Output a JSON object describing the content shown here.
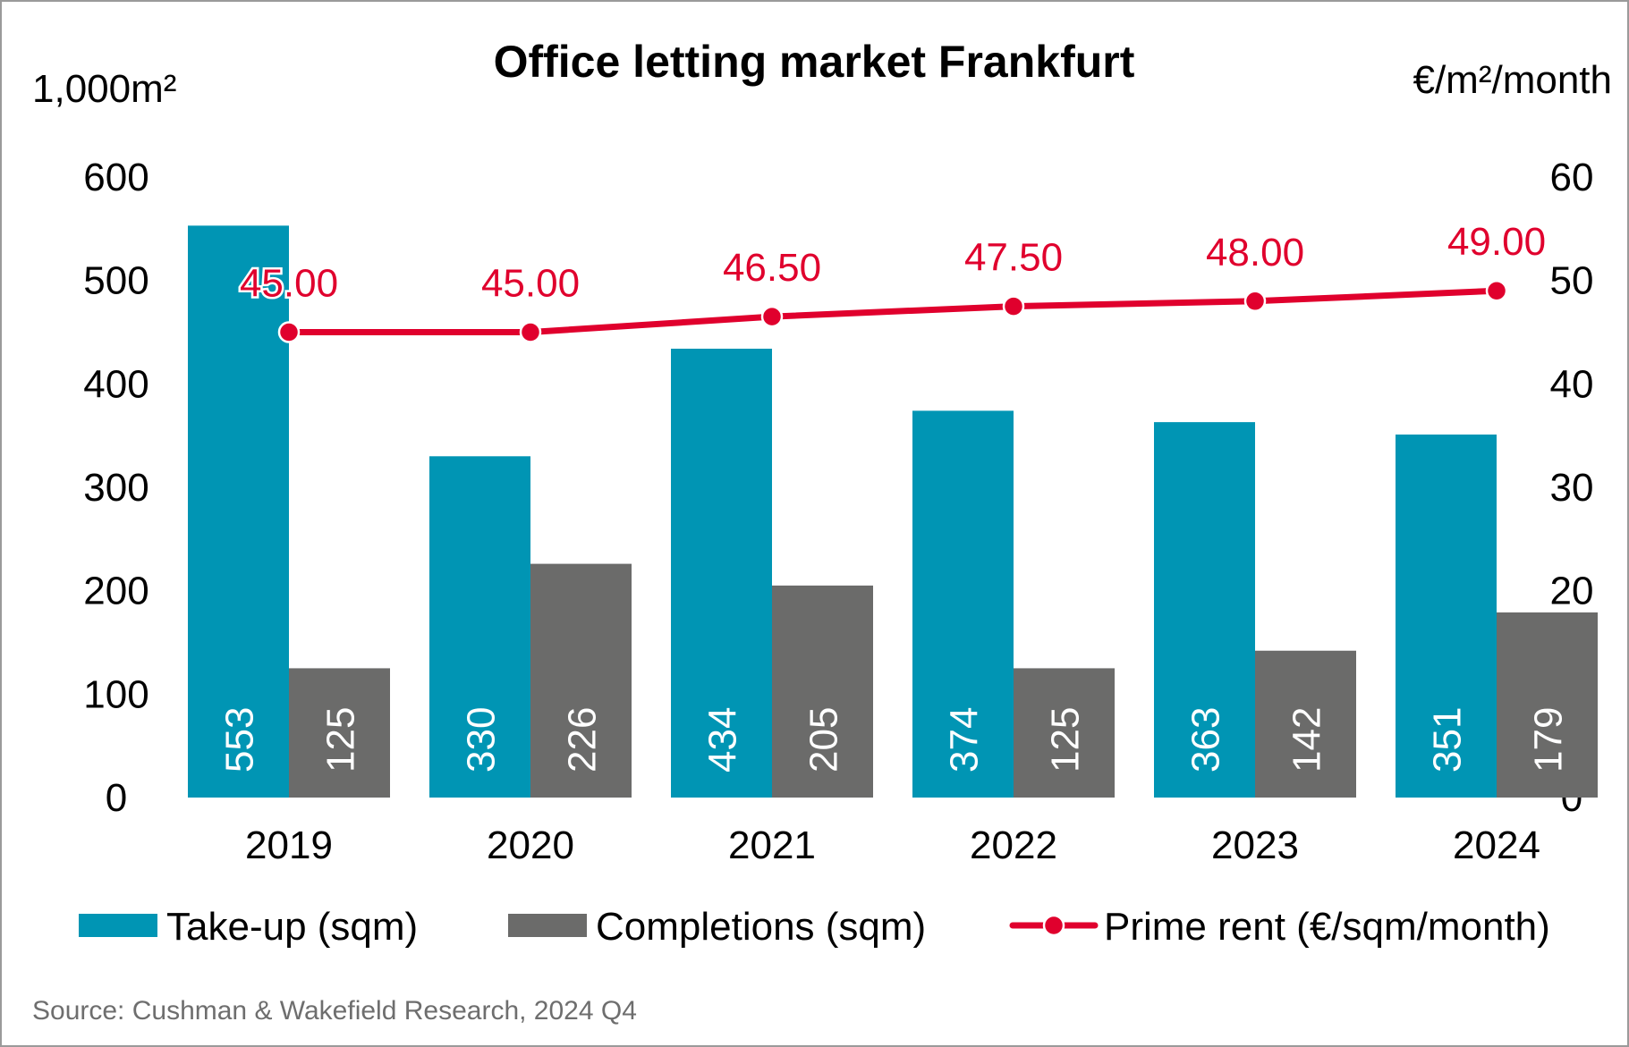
{
  "chart_data": {
    "type": "bar",
    "title": "Office letting market Frankfurt",
    "y_left_unit": "1,000m²",
    "y_right_unit": "€/m²/month",
    "categories": [
      "2019",
      "2020",
      "2021",
      "2022",
      "2023",
      "2024"
    ],
    "ylim_left": [
      0,
      600
    ],
    "ylim_right": [
      0,
      60
    ],
    "yticks_left": [
      "0",
      "100",
      "200",
      "300",
      "400",
      "500",
      "600"
    ],
    "yticks_right": [
      "0",
      "10",
      "20",
      "30",
      "40",
      "50",
      "60"
    ],
    "grid": false,
    "legend_position": "bottom",
    "series": [
      {
        "name": "Take-up (sqm)",
        "type": "bar",
        "axis": "left",
        "color": "#0095b4",
        "values": [
          553,
          330,
          434,
          374,
          363,
          351
        ],
        "labels": [
          "553",
          "330",
          "434",
          "374",
          "363",
          "351"
        ]
      },
      {
        "name": "Completions (sqm)",
        "type": "bar",
        "axis": "left",
        "color": "#6b6b6a",
        "values": [
          125,
          226,
          205,
          125,
          142,
          179
        ],
        "labels": [
          "125",
          "226",
          "205",
          "125",
          "142",
          "179"
        ]
      },
      {
        "name": "Prime rent (€/sqm/month)",
        "type": "line",
        "axis": "right",
        "color": "#e0002d",
        "values": [
          45.0,
          45.0,
          46.5,
          47.5,
          48.0,
          49.0
        ],
        "labels": [
          "45.00",
          "45.00",
          "46.50",
          "47.50",
          "48.00",
          "49.00"
        ]
      }
    ],
    "source": "Source: Cushman & Wakefield Research, 2024 Q4"
  }
}
